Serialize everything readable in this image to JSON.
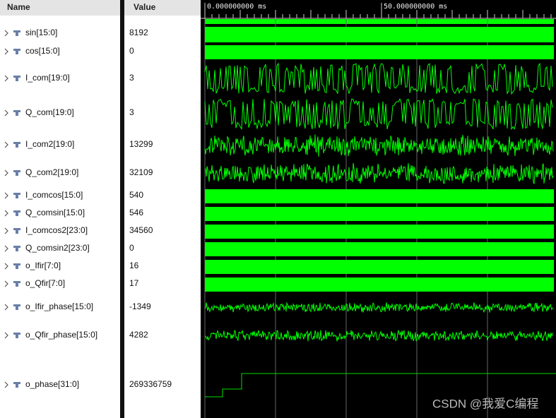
{
  "header": {
    "name": "Name",
    "value": "Value"
  },
  "ruler": [
    "0.000000000 ms",
    "50.000000000 ms"
  ],
  "signals": [
    {
      "name": "sin[15:0]",
      "value": "8192"
    },
    {
      "name": "cos[15:0]",
      "value": "0"
    },
    {
      "name": "I_com[19:0]",
      "value": "3"
    },
    {
      "name": "Q_com[19:0]",
      "value": "3"
    },
    {
      "name": "I_com2[19:0]",
      "value": "13299"
    },
    {
      "name": "Q_com2[19:0]",
      "value": "32109"
    },
    {
      "name": "I_comcos[15:0]",
      "value": "540"
    },
    {
      "name": "Q_comsin[15:0]",
      "value": "546"
    },
    {
      "name": "I_comcos2[23:0]",
      "value": "34560"
    },
    {
      "name": "Q_comsin2[23:0]",
      "value": "0"
    },
    {
      "name": "o_Ifir[7:0]",
      "value": "16"
    },
    {
      "name": "o_Qfir[7:0]",
      "value": "17"
    },
    {
      "name": "o_Ifir_phase[15:0]",
      "value": "-1349"
    },
    {
      "name": "o_Qfir_phase[15:0]",
      "value": "4282"
    },
    {
      "name": "o_phase[31:0]",
      "value": "269336759"
    }
  ],
  "watermark": "CSDN @我爱C编程"
}
